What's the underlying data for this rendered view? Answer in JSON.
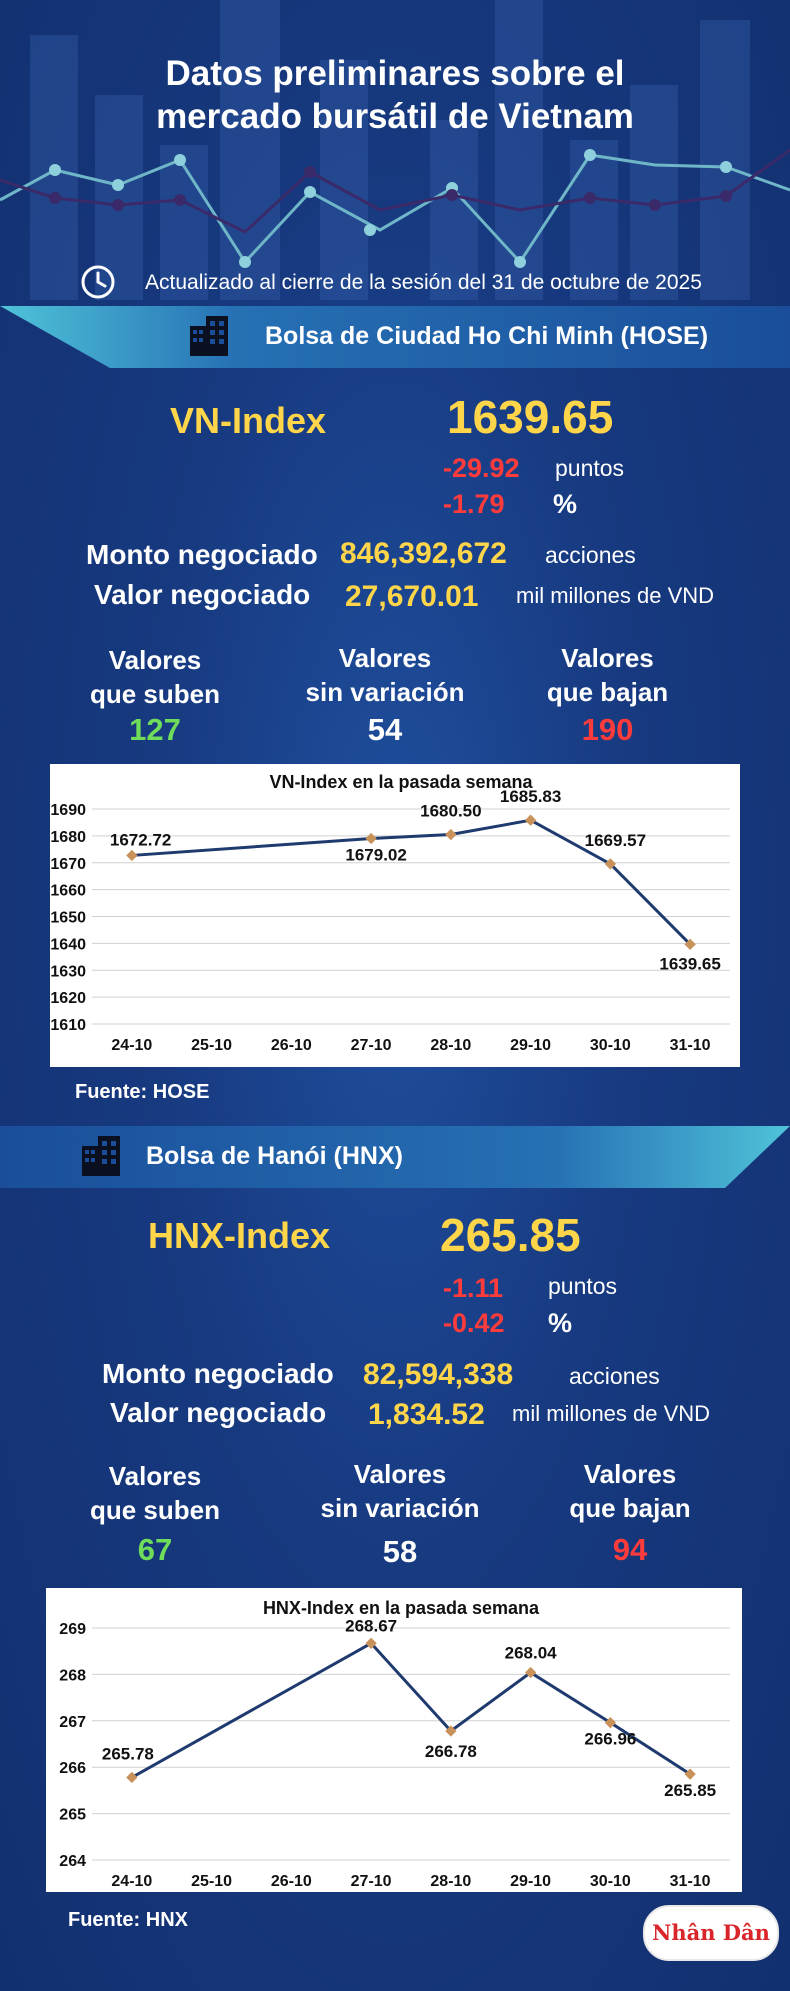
{
  "header": {
    "title_line1": "Datos preliminares sobre el",
    "title_line2": "mercado bursátil de Vietnam",
    "updated": "Actualizado al cierre de la sesión del 31 de octubre de 2025",
    "clock_icon": "clock-icon"
  },
  "hose": {
    "exchange": "Bolsa de Ciudad Ho Chi Minh (HOSE)",
    "index_name": "VN-Index",
    "index_value": "1639.65",
    "change_points": "-29.92",
    "points_label": "puntos",
    "change_percent": "-1.79",
    "percent_label": "%",
    "volume_label": "Monto negociado",
    "volume": "846,392,672",
    "volume_unit": "acciones",
    "value_label": "Valor negociado",
    "value": "27,670.01",
    "value_unit": "mil millones de VND",
    "up_label1": "Valores",
    "up_label2": "que suben",
    "up_count": "127",
    "flat_label1": "Valores",
    "flat_label2": "sin variación",
    "flat_count": "54",
    "down_label1": "Valores",
    "down_label2": "que bajan",
    "down_count": "190",
    "source": "Fuente: HOSE"
  },
  "hnx": {
    "exchange": "Bolsa de Hanói (HNX)",
    "index_name": "HNX-Index",
    "index_value": "265.85",
    "change_points": "-1.11",
    "points_label": "puntos",
    "change_percent": "-0.42",
    "percent_label": "%",
    "volume_label": "Monto negociado",
    "volume": "82,594,338",
    "volume_unit": "acciones",
    "value_label": "Valor negociado",
    "value": "1,834.52",
    "value_unit": "mil millones de VND",
    "up_label1": "Valores",
    "up_label2": "que suben",
    "up_count": "67",
    "flat_label1": "Valores",
    "flat_label2": "sin variación",
    "flat_count": "58",
    "down_label1": "Valores",
    "down_label2": "que bajan",
    "down_count": "94",
    "source": "Fuente:  HNX"
  },
  "logo_text": "Nhân Dân",
  "colors": {
    "yellow": "#ffd54a",
    "red": "#ff3b3b",
    "green": "#6fdc5a",
    "line": "#1f3a6e",
    "marker": "#c9925a"
  },
  "chart_data": [
    {
      "type": "line",
      "title": "VN-Index en la pasada semana",
      "categories": [
        "24-10",
        "25-10",
        "26-10",
        "27-10",
        "28-10",
        "29-10",
        "30-10",
        "31-10"
      ],
      "points": [
        {
          "x": "24-10",
          "y": 1672.72,
          "label": "1672.72"
        },
        {
          "x": "27-10",
          "y": 1679.02,
          "label": "1679.02"
        },
        {
          "x": "28-10",
          "y": 1680.5,
          "label": "1680.50"
        },
        {
          "x": "29-10",
          "y": 1685.83,
          "label": "1685.83"
        },
        {
          "x": "30-10",
          "y": 1669.57,
          "label": "1669.57"
        },
        {
          "x": "31-10",
          "y": 1639.65,
          "label": "1639.65"
        }
      ],
      "ylim": [
        1610,
        1690
      ],
      "yticks": [
        "1610",
        "1620",
        "1630",
        "1640",
        "1650",
        "1660",
        "1670",
        "1680",
        "1690"
      ],
      "grid": true
    },
    {
      "type": "line",
      "title": "HNX-Index en la pasada semana",
      "categories": [
        "24-10",
        "25-10",
        "26-10",
        "27-10",
        "28-10",
        "29-10",
        "30-10",
        "31-10"
      ],
      "points": [
        {
          "x": "24-10",
          "y": 265.78,
          "label": "265.78"
        },
        {
          "x": "27-10",
          "y": 268.67,
          "label": "268.67"
        },
        {
          "x": "28-10",
          "y": 266.78,
          "label": "266.78"
        },
        {
          "x": "29-10",
          "y": 268.04,
          "label": "268.04"
        },
        {
          "x": "30-10",
          "y": 266.96,
          "label": "266.96"
        },
        {
          "x": "31-10",
          "y": 265.85,
          "label": "265.85"
        }
      ],
      "ylim": [
        264,
        269
      ],
      "yticks": [
        "264",
        "265",
        "266",
        "267",
        "268",
        "269"
      ],
      "grid": true
    }
  ]
}
